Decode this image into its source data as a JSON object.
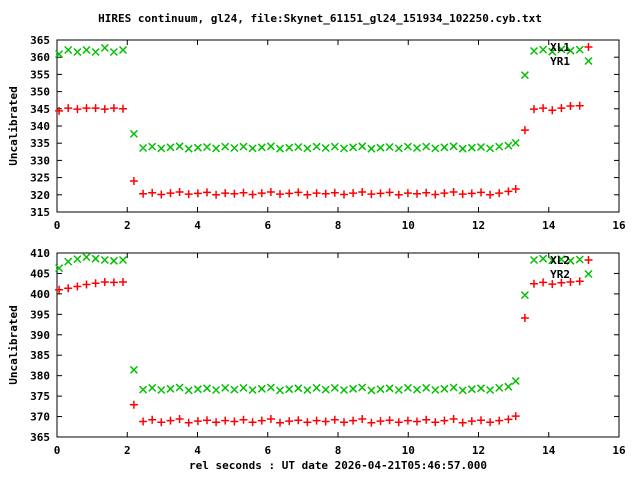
{
  "title": "HIRES continuum, gl24, file:Skynet_61151_gl24_151934_102250.cyb.txt",
  "xlabel": "rel seconds : UT date 2026-04-21T05:46:57.000",
  "colors": {
    "background": "#ffffff",
    "axis": "#000000",
    "text": "#000000",
    "series_red": "#ff0000",
    "series_green": "#00c000"
  },
  "chart_data": [
    {
      "type": "scatter",
      "panel": "top",
      "ylabel": "Uncalibrated",
      "xlim": [
        0,
        16
      ],
      "ylim": [
        315,
        365
      ],
      "x_ticks": [
        0,
        2,
        4,
        6,
        8,
        10,
        12,
        14,
        16
      ],
      "y_ticks": [
        315,
        320,
        325,
        330,
        335,
        340,
        345,
        350,
        355,
        360,
        365
      ],
      "grid": false,
      "legend_position": "top-right-inside",
      "x": [
        0.06,
        0.32,
        0.58,
        0.84,
        1.1,
        1.36,
        1.62,
        1.88,
        2.19,
        2.45,
        2.71,
        2.97,
        3.23,
        3.49,
        3.75,
        4.01,
        4.27,
        4.53,
        4.79,
        5.05,
        5.31,
        5.57,
        5.83,
        6.09,
        6.35,
        6.61,
        6.87,
        7.13,
        7.39,
        7.65,
        7.91,
        8.17,
        8.43,
        8.69,
        8.95,
        9.21,
        9.47,
        9.73,
        9.99,
        10.25,
        10.51,
        10.77,
        11.03,
        11.29,
        11.55,
        11.81,
        12.07,
        12.33,
        12.59,
        12.85,
        13.06,
        13.32,
        13.58,
        13.84,
        14.1,
        14.36,
        14.62,
        14.88
      ],
      "series": [
        {
          "name": "XL1",
          "marker": "plus",
          "color": "#ff0000",
          "values": [
            344.4,
            345.2,
            344.9,
            345.2,
            345.2,
            344.9,
            345.2,
            345.0,
            324.0,
            320.3,
            320.6,
            320.1,
            320.5,
            320.8,
            320.2,
            320.4,
            320.7,
            320.0,
            320.5,
            320.3,
            320.6,
            320.1,
            320.5,
            320.8,
            320.2,
            320.4,
            320.7,
            320.0,
            320.5,
            320.3,
            320.6,
            320.1,
            320.5,
            320.8,
            320.2,
            320.4,
            320.7,
            320.0,
            320.5,
            320.3,
            320.6,
            320.1,
            320.5,
            320.8,
            320.2,
            320.4,
            320.7,
            320.0,
            320.5,
            321.0,
            321.7,
            338.8,
            344.9,
            345.2,
            344.6,
            345.2,
            345.8,
            345.9
          ]
        },
        {
          "name": "YR1",
          "marker": "cross",
          "color": "#00c000",
          "values": [
            360.9,
            362.1,
            361.5,
            362.1,
            361.5,
            362.7,
            361.5,
            362.1,
            337.7,
            333.6,
            334.0,
            333.5,
            333.8,
            334.1,
            333.4,
            333.7,
            333.9,
            333.5,
            334.0,
            333.6,
            334.0,
            333.5,
            333.8,
            334.1,
            333.4,
            333.7,
            333.9,
            333.5,
            334.0,
            333.6,
            334.0,
            333.5,
            333.8,
            334.1,
            333.4,
            333.7,
            333.9,
            333.5,
            334.0,
            333.6,
            334.0,
            333.5,
            333.8,
            334.1,
            333.4,
            333.7,
            333.9,
            333.5,
            334.0,
            334.3,
            335.1,
            354.8,
            361.8,
            362.2,
            361.6,
            362.3,
            361.9,
            362.2
          ]
        }
      ]
    },
    {
      "type": "scatter",
      "panel": "bottom",
      "ylabel": "Uncalibrated",
      "xlim": [
        0,
        16
      ],
      "ylim": [
        365,
        410
      ],
      "x_ticks": [
        0,
        2,
        4,
        6,
        8,
        10,
        12,
        14,
        16
      ],
      "y_ticks": [
        365,
        370,
        375,
        380,
        385,
        390,
        395,
        400,
        405,
        410
      ],
      "grid": false,
      "legend_position": "top-right-inside",
      "x": [
        0.06,
        0.32,
        0.58,
        0.84,
        1.1,
        1.36,
        1.62,
        1.88,
        2.19,
        2.45,
        2.71,
        2.97,
        3.23,
        3.49,
        3.75,
        4.01,
        4.27,
        4.53,
        4.79,
        5.05,
        5.31,
        5.57,
        5.83,
        6.09,
        6.35,
        6.61,
        6.87,
        7.13,
        7.39,
        7.65,
        7.91,
        8.17,
        8.43,
        8.69,
        8.95,
        9.21,
        9.47,
        9.73,
        9.99,
        10.25,
        10.51,
        10.77,
        11.03,
        11.29,
        11.55,
        11.81,
        12.07,
        12.33,
        12.59,
        12.85,
        13.06,
        13.32,
        13.58,
        13.84,
        14.1,
        14.36,
        14.62,
        14.88
      ],
      "series": [
        {
          "name": "XL2",
          "marker": "plus",
          "color": "#ff0000",
          "values": [
            401.0,
            401.4,
            401.8,
            402.3,
            402.6,
            402.9,
            402.8,
            402.9,
            372.9,
            368.8,
            369.2,
            368.6,
            369.0,
            369.4,
            368.5,
            368.9,
            369.1,
            368.6,
            369.0,
            368.8,
            369.2,
            368.6,
            369.0,
            369.4,
            368.5,
            368.9,
            369.1,
            368.6,
            369.0,
            368.8,
            369.2,
            368.6,
            369.0,
            369.4,
            368.5,
            368.9,
            369.1,
            368.6,
            369.0,
            368.8,
            369.2,
            368.6,
            369.0,
            369.4,
            368.5,
            368.9,
            369.1,
            368.6,
            369.0,
            369.3,
            370.1,
            394.1,
            402.5,
            402.8,
            402.4,
            402.7,
            402.9,
            403.1
          ]
        },
        {
          "name": "YR2",
          "marker": "cross",
          "color": "#00c000",
          "values": [
            406.3,
            407.9,
            408.5,
            409.0,
            408.6,
            408.3,
            408.1,
            408.3,
            381.4,
            376.6,
            377.0,
            376.5,
            376.8,
            377.1,
            376.4,
            376.7,
            376.9,
            376.5,
            377.0,
            376.6,
            377.0,
            376.5,
            376.8,
            377.1,
            376.4,
            376.7,
            376.9,
            376.5,
            377.0,
            376.6,
            377.0,
            376.5,
            376.8,
            377.1,
            376.4,
            376.7,
            376.9,
            376.5,
            377.0,
            376.6,
            377.0,
            376.5,
            376.8,
            377.1,
            376.4,
            376.7,
            376.9,
            376.5,
            377.0,
            377.3,
            378.7,
            399.7,
            408.3,
            408.6,
            408.2,
            408.5,
            408.1,
            408.4
          ]
        }
      ]
    }
  ]
}
